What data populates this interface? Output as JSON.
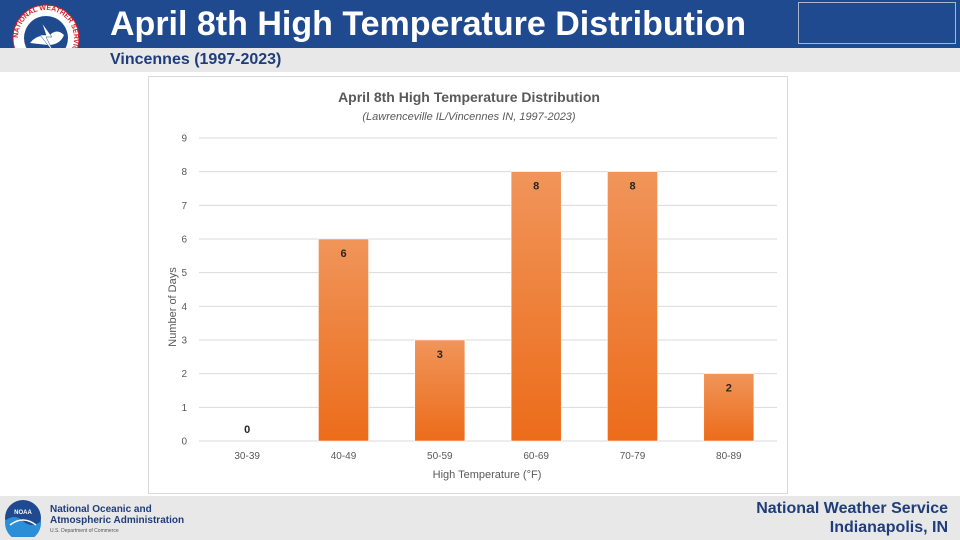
{
  "header": {
    "title": "April 8th High Temperature Distribution",
    "subtitle": "Vincennes (1997-2023)",
    "logo_text": "NATIONAL WEATHER SERVICE"
  },
  "footer": {
    "noaa_line1": "National Oceanic and",
    "noaa_line2": "Atmospheric Administration",
    "noaa_dept": "U.S. Department of Commerce",
    "noaa_logo_text": "NOAA",
    "nws_line1": "National Weather Service",
    "nws_line2": "Indianapolis, IN"
  },
  "colors": {
    "header_blue": "#1f4a8f",
    "bar_top": "#f0955a",
    "bar_bottom": "#ec6c1a",
    "footer_gray": "#e8e8e8"
  },
  "chart_data": {
    "type": "bar",
    "title": "April 8th High Temperature Distribution",
    "subtitle": "(Lawrenceville IL/Vincennes IN, 1997-2023)",
    "xlabel": "High Temperature (°F)",
    "ylabel": "Number of Days",
    "categories": [
      "30-39",
      "40-49",
      "50-59",
      "60-69",
      "70-79",
      "80-89"
    ],
    "values": [
      0,
      6,
      3,
      8,
      8,
      2
    ],
    "ylim": [
      0,
      9
    ],
    "yticks": [
      0,
      1,
      2,
      3,
      4,
      5,
      6,
      7,
      8,
      9
    ],
    "grid": true,
    "legend": "none"
  }
}
